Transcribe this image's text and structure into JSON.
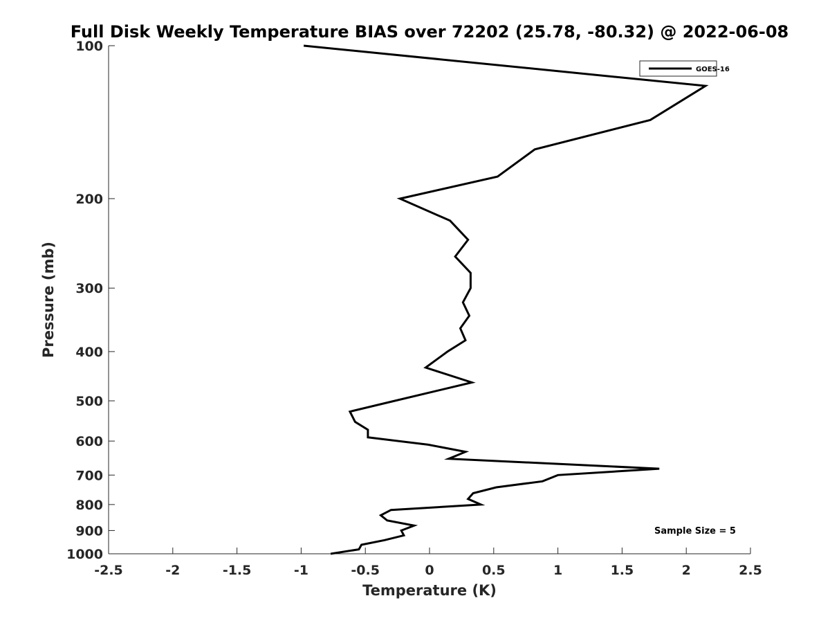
{
  "chart_data": {
    "type": "line",
    "title": "Full Disk Weekly Temperature BIAS over 72202 (25.78, -80.32) @ 2022-06-08",
    "xlabel": "Temperature (K)",
    "ylabel": "Pressure (mb)",
    "xlim": [
      -2.5,
      2.5
    ],
    "ylim": [
      100,
      1000
    ],
    "y_scale": "log",
    "y_reversed": true,
    "grid": false,
    "x_ticks": [
      -2.5,
      -2,
      -1.5,
      -1,
      -0.5,
      0,
      0.5,
      1,
      1.5,
      2,
      2.5
    ],
    "x_tick_labels": [
      "-2.5",
      "-2",
      "-1.5",
      "-1",
      "-0.5",
      "0",
      "0.5",
      "1",
      "1.5",
      "2",
      "2.5"
    ],
    "y_ticks": [
      100,
      200,
      300,
      400,
      500,
      600,
      700,
      800,
      900,
      1000
    ],
    "y_tick_labels": [
      "100",
      "200",
      "300",
      "400",
      "500",
      "600",
      "700",
      "800",
      "900",
      "1000"
    ],
    "legend": {
      "position": "top-right",
      "entries": [
        "GOES-16"
      ]
    },
    "annotation": "Sample Size = 5",
    "series": [
      {
        "name": "GOES-16",
        "color": "#000000",
        "points": [
          {
            "x": -0.98,
            "y": 100
          },
          {
            "x": 2.15,
            "y": 120
          },
          {
            "x": 1.72,
            "y": 140
          },
          {
            "x": 0.82,
            "y": 160
          },
          {
            "x": 0.53,
            "y": 181
          },
          {
            "x": -0.23,
            "y": 200
          },
          {
            "x": 0.16,
            "y": 221
          },
          {
            "x": 0.3,
            "y": 241
          },
          {
            "x": 0.2,
            "y": 260
          },
          {
            "x": 0.32,
            "y": 280
          },
          {
            "x": 0.32,
            "y": 300
          },
          {
            "x": 0.26,
            "y": 320
          },
          {
            "x": 0.31,
            "y": 340
          },
          {
            "x": 0.24,
            "y": 360
          },
          {
            "x": 0.28,
            "y": 380
          },
          {
            "x": 0.14,
            "y": 400
          },
          {
            "x": -0.03,
            "y": 430
          },
          {
            "x": 0.33,
            "y": 460
          },
          {
            "x": -0.27,
            "y": 500
          },
          {
            "x": -0.62,
            "y": 525
          },
          {
            "x": -0.58,
            "y": 550
          },
          {
            "x": -0.48,
            "y": 570
          },
          {
            "x": -0.48,
            "y": 590
          },
          {
            "x": -0.01,
            "y": 610
          },
          {
            "x": 0.28,
            "y": 630
          },
          {
            "x": 0.15,
            "y": 650
          },
          {
            "x": 1.79,
            "y": 680
          },
          {
            "x": 1.0,
            "y": 700
          },
          {
            "x": 0.88,
            "y": 720
          },
          {
            "x": 0.52,
            "y": 740
          },
          {
            "x": 0.34,
            "y": 760
          },
          {
            "x": 0.3,
            "y": 780
          },
          {
            "x": 0.4,
            "y": 800
          },
          {
            "x": -0.3,
            "y": 820
          },
          {
            "x": -0.38,
            "y": 840
          },
          {
            "x": -0.33,
            "y": 860
          },
          {
            "x": -0.12,
            "y": 880
          },
          {
            "x": -0.22,
            "y": 900
          },
          {
            "x": -0.2,
            "y": 920
          },
          {
            "x": -0.35,
            "y": 940
          },
          {
            "x": -0.53,
            "y": 960
          },
          {
            "x": -0.55,
            "y": 980
          },
          {
            "x": -0.77,
            "y": 1000
          }
        ]
      }
    ]
  }
}
